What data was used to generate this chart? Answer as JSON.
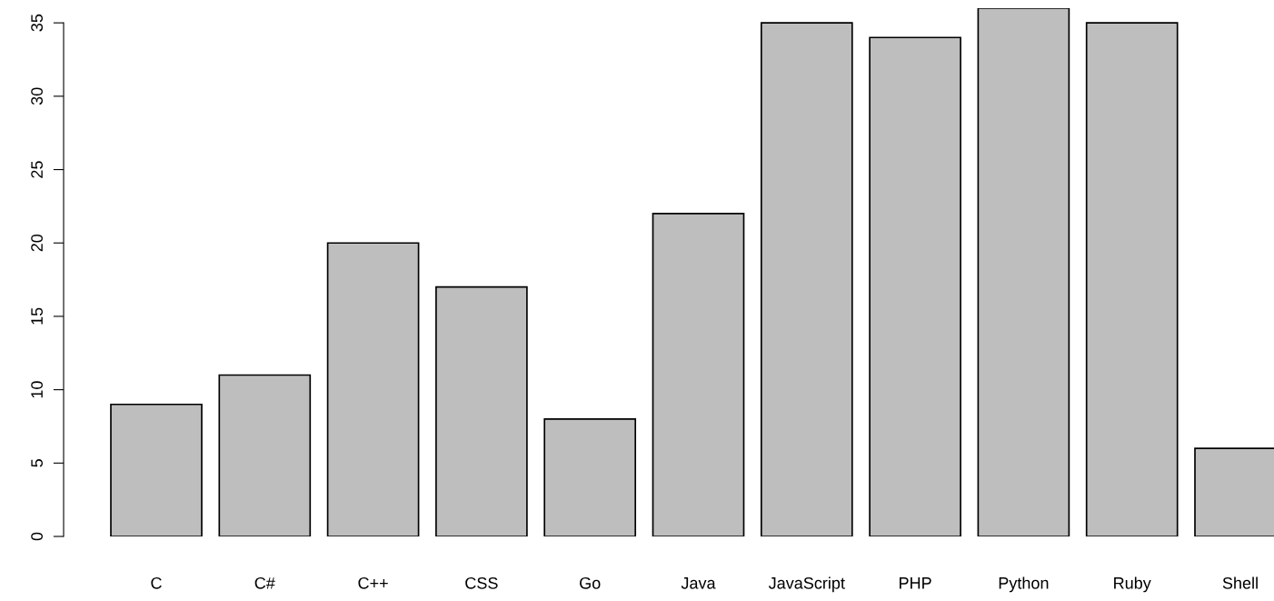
{
  "chart_data": {
    "type": "bar",
    "categories": [
      "C",
      "C#",
      "C++",
      "CSS",
      "Go",
      "Java",
      "JavaScript",
      "PHP",
      "Python",
      "Ruby",
      "Shell"
    ],
    "values": [
      9,
      11,
      20,
      17,
      8,
      22,
      35,
      34,
      36,
      35,
      6
    ],
    "color": "#bebebe",
    "ylim": [
      0,
      36
    ],
    "yticks": [
      0,
      5,
      10,
      15,
      20,
      25,
      30,
      35
    ],
    "grid": false
  }
}
